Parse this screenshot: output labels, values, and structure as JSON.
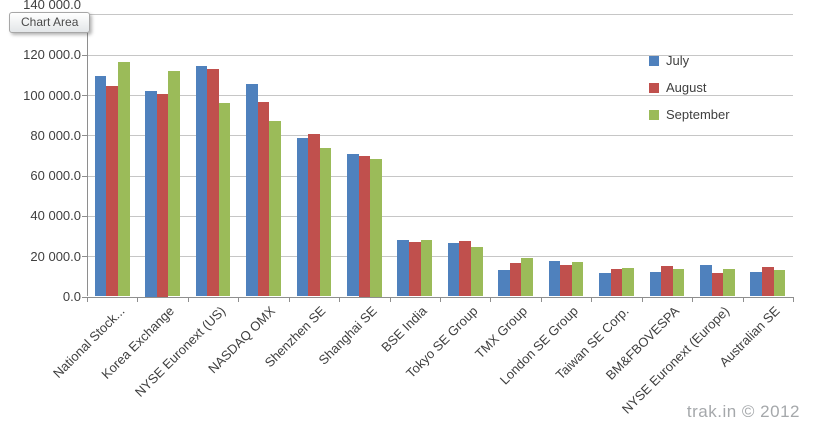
{
  "tooltip": {
    "label": "Chart Area"
  },
  "watermark": {
    "text": "trak.in © 2012"
  },
  "colors": {
    "series_july": "#4F81BD",
    "series_august": "#C0504D",
    "series_september": "#9BBB59",
    "gridline": "#C6C6C6",
    "axis": "#8E8E8E",
    "label_text": "#3F3F3F",
    "watermark_text": "#A5A8AB",
    "background": "#FFFFFF"
  },
  "chart_data": {
    "type": "bar",
    "title": "",
    "categories": [
      "National Stock...",
      "Korea Exchange",
      "NYSE Euronext (US)",
      "NASDAQ OMX",
      "Shenzhen SE",
      "Shanghai SE",
      "BSE India",
      "Tokyo SE Group",
      "TMX Group",
      "London SE Group",
      "Taiwan SE Corp.",
      "BM&FBOVESPA",
      "NYSE Euronext (Europe)",
      "Australian SE"
    ],
    "series": [
      {
        "name": "July",
        "color": "#4F81BD",
        "values": [
          109500,
          102000,
          114500,
          105500,
          78500,
          70500,
          28000,
          26500,
          13000,
          17500,
          11500,
          12000,
          15500,
          12000
        ]
      },
      {
        "name": "August",
        "color": "#C0504D",
        "values": [
          104500,
          100500,
          113000,
          96500,
          80500,
          70000,
          27000,
          27500,
          16500,
          15500,
          13500,
          15000,
          11500,
          14500
        ]
      },
      {
        "name": "September",
        "color": "#9BBB59",
        "values": [
          116500,
          112000,
          96000,
          87000,
          73500,
          68500,
          28000,
          24500,
          19000,
          17000,
          14000,
          13500,
          13500,
          13000
        ]
      }
    ],
    "ylim": [
      0,
      140000
    ],
    "ytick_step": 20000,
    "ytick_labels": [
      "0.0",
      "20 000.0",
      "40 000.0",
      "60 000.0",
      "80 000.0",
      "100 000.0",
      "120 000.0",
      "140 000.0"
    ],
    "grid": true,
    "legend_position": "inside-top-right",
    "legend_entries": [
      "July",
      "August",
      "September"
    ]
  }
}
